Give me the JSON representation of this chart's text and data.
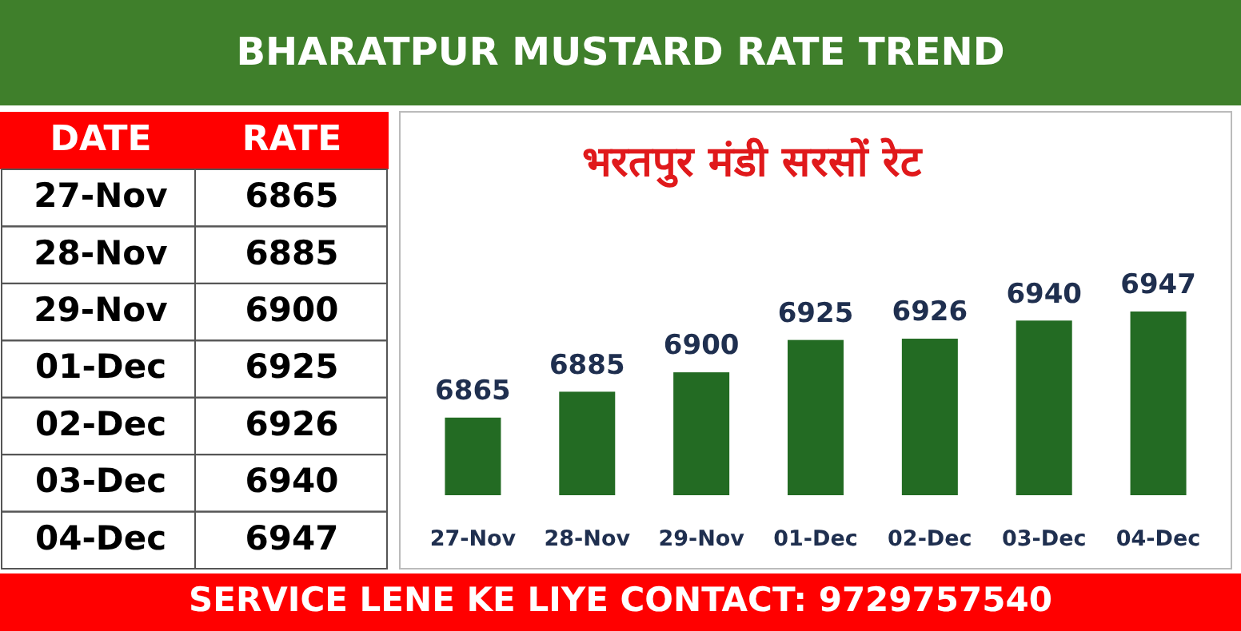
{
  "chart_data": {
    "type": "bar",
    "title": "BHARATPUR MUSTARD RATE TREND",
    "subtitle": "भरतपुर मंडी सरसों रेट",
    "categories": [
      "27-Nov",
      "28-Nov",
      "29-Nov",
      "01-Dec",
      "02-Dec",
      "03-Dec",
      "04-Dec"
    ],
    "values": [
      6865,
      6885,
      6900,
      6925,
      6926,
      6940,
      6947
    ],
    "color": "#236b23",
    "ylim": [
      6805,
      6947
    ],
    "value_labels": [
      "6865",
      "6885",
      "6900",
      "6925",
      "6926",
      "6940",
      "6947"
    ],
    "annotations": [
      "DATE",
      "RATE",
      "SERVICE LENE KE LIYE CONTACT: 9729757540"
    ]
  }
}
